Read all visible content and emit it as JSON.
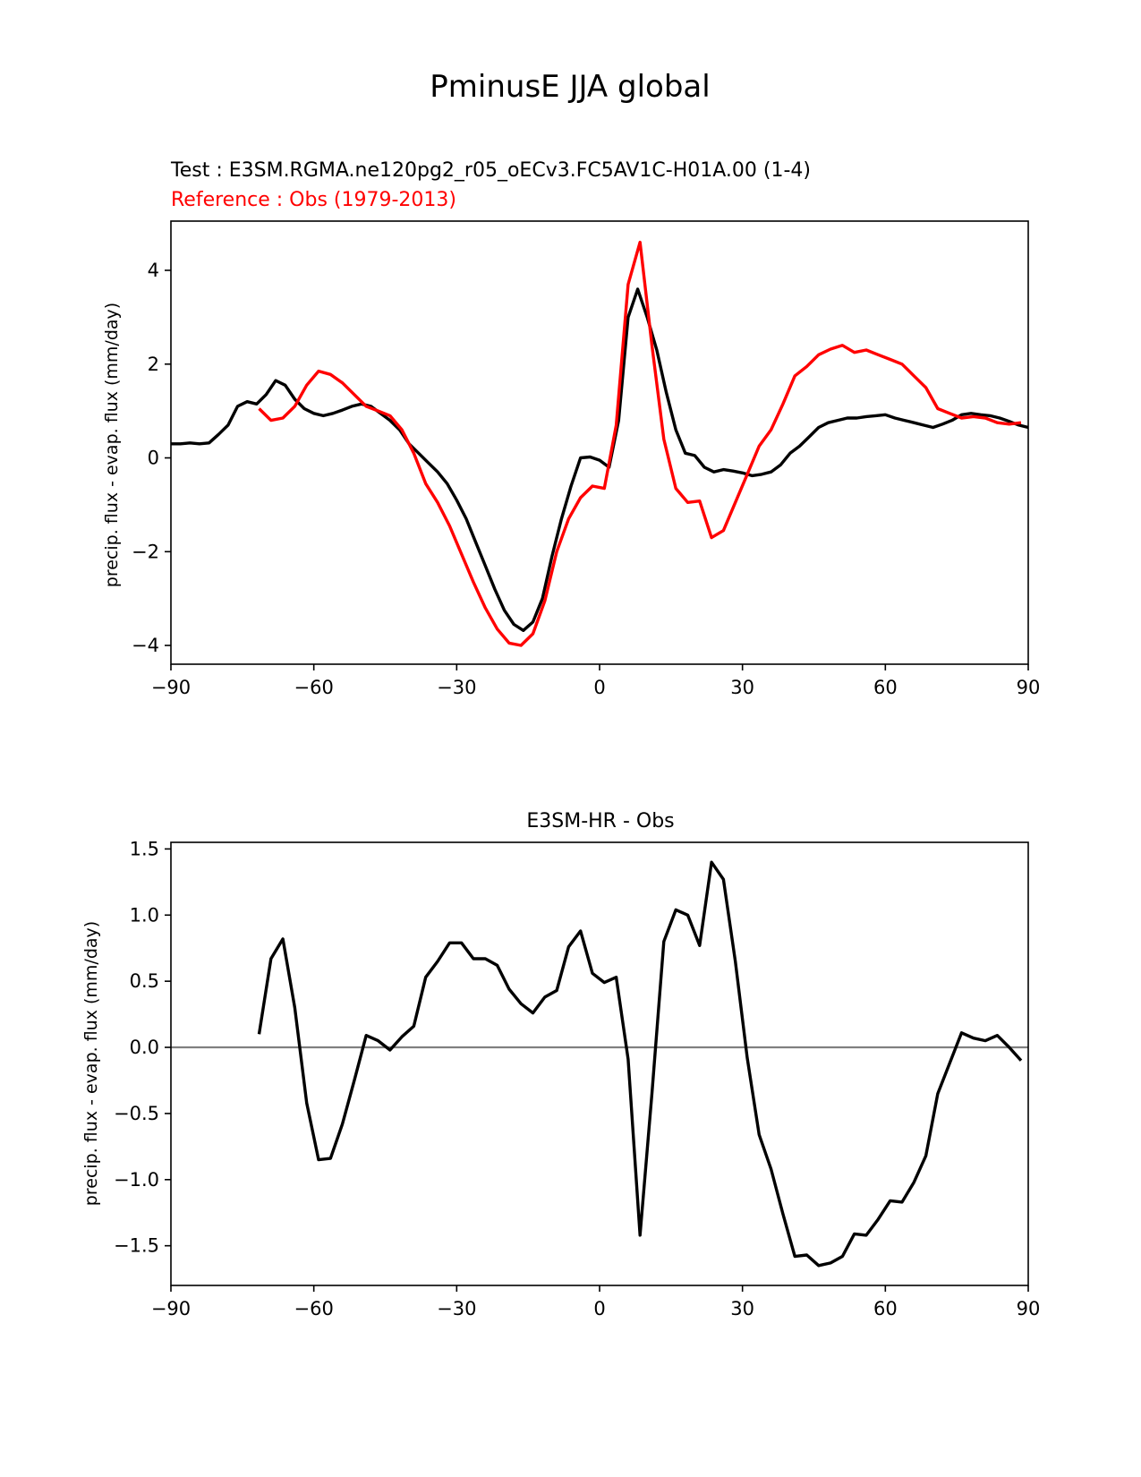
{
  "figure": {
    "title": "PminusE JJA global",
    "colors": {
      "test": "#000000",
      "reference": "#ff0000",
      "zero_line": "#808080",
      "axes": "#000000"
    }
  },
  "chart_data": [
    {
      "type": "line",
      "title_test": "Test : E3SM.RGMA.ne120pg2_r05_oECv3.FC5AV1C-H01A.00 (1-4)",
      "title_reference": "Reference : Obs (1979-2013)",
      "xlabel": "",
      "ylabel": "precip. flux - evap. flux (mm/day)",
      "xlim": [
        -90,
        90
      ],
      "ylim": [
        -4.4,
        5.05
      ],
      "xticks": [
        -90,
        -60,
        -30,
        0,
        30,
        60,
        90
      ],
      "xtick_labels": [
        "−90",
        "−60",
        "−30",
        "0",
        "30",
        "60",
        "90"
      ],
      "yticks": [
        -4,
        -2,
        0,
        2,
        4
      ],
      "ytick_labels": [
        "−4",
        "−2",
        "0",
        "2",
        "4"
      ],
      "series": [
        {
          "name": "Test",
          "color": "#000000",
          "x": [
            -90,
            -88,
            -86,
            -84,
            -82,
            -80,
            -78,
            -76,
            -74,
            -72,
            -70,
            -68,
            -66,
            -64,
            -62,
            -60,
            -58,
            -56,
            -54,
            -52,
            -50,
            -48,
            -46,
            -44,
            -42,
            -40,
            -38,
            -36,
            -34,
            -32,
            -30,
            -28,
            -26,
            -24,
            -22,
            -20,
            -18,
            -16,
            -14,
            -12,
            -10,
            -8,
            -6,
            -4,
            -2,
            0,
            2,
            4,
            6,
            8,
            10,
            12,
            14,
            16,
            18,
            20,
            22,
            24,
            26,
            28,
            30,
            32,
            34,
            36,
            38,
            40,
            42,
            44,
            46,
            48,
            50,
            52,
            54,
            56,
            58,
            60,
            62,
            64,
            66,
            68,
            70,
            72,
            74,
            76,
            78,
            80,
            82,
            84,
            86,
            88,
            90
          ],
          "y": [
            0.3,
            0.3,
            0.32,
            0.3,
            0.32,
            0.5,
            0.7,
            1.1,
            1.2,
            1.15,
            1.35,
            1.65,
            1.55,
            1.25,
            1.05,
            0.95,
            0.9,
            0.95,
            1.02,
            1.1,
            1.15,
            1.1,
            0.95,
            0.8,
            0.6,
            0.3,
            0.1,
            -0.1,
            -0.3,
            -0.55,
            -0.9,
            -1.3,
            -1.8,
            -2.3,
            -2.8,
            -3.25,
            -3.55,
            -3.68,
            -3.5,
            -3.0,
            -2.1,
            -1.3,
            -0.6,
            0.0,
            0.02,
            -0.05,
            -0.2,
            0.8,
            3.0,
            3.6,
            3.0,
            2.3,
            1.4,
            0.6,
            0.1,
            0.05,
            -0.2,
            -0.3,
            -0.25,
            -0.28,
            -0.32,
            -0.38,
            -0.35,
            -0.3,
            -0.15,
            0.1,
            0.25,
            0.45,
            0.65,
            0.75,
            0.8,
            0.85,
            0.85,
            0.88,
            0.9,
            0.92,
            0.85,
            0.8,
            0.75,
            0.7,
            0.65,
            0.72,
            0.8,
            0.92,
            0.95,
            0.92,
            0.9,
            0.85,
            0.78,
            0.7,
            0.65
          ]
        },
        {
          "name": "Reference",
          "color": "#ff0000",
          "x": [
            -71.5,
            -69,
            -66.5,
            -64,
            -61.5,
            -59,
            -56.5,
            -54,
            -51.5,
            -49,
            -46.5,
            -44,
            -41.5,
            -39,
            -36.5,
            -34,
            -31.5,
            -29,
            -26.5,
            -24,
            -21.5,
            -19,
            -16.5,
            -14,
            -11.5,
            -9,
            -6.5,
            -4,
            -1.5,
            1,
            3.5,
            6,
            8.5,
            11,
            13.5,
            16,
            18.5,
            21,
            23.5,
            26,
            28.5,
            31,
            33.5,
            36,
            38.5,
            41,
            43.5,
            46,
            48.5,
            51,
            53.5,
            56,
            58.5,
            61,
            63.5,
            66,
            68.5,
            71,
            73.5,
            76,
            78.5,
            81,
            83.5,
            86,
            88.5
          ],
          "y": [
            1.05,
            0.8,
            0.85,
            1.1,
            1.55,
            1.85,
            1.78,
            1.6,
            1.35,
            1.1,
            1.0,
            0.9,
            0.6,
            0.1,
            -0.55,
            -0.95,
            -1.45,
            -2.05,
            -2.65,
            -3.2,
            -3.65,
            -3.95,
            -4.0,
            -3.75,
            -3.05,
            -2.0,
            -1.3,
            -0.85,
            -0.6,
            -0.65,
            0.7,
            3.7,
            4.6,
            2.4,
            0.4,
            -0.65,
            -0.95,
            -0.92,
            -1.7,
            -1.55,
            -0.95,
            -0.35,
            0.25,
            0.6,
            1.15,
            1.75,
            1.95,
            2.2,
            2.32,
            2.4,
            2.25,
            2.3,
            2.2,
            2.1,
            2.0,
            1.75,
            1.5,
            1.05,
            0.95,
            0.85,
            0.88,
            0.85,
            0.75,
            0.72,
            0.75
          ]
        }
      ]
    },
    {
      "type": "line",
      "title": "E3SM-HR - Obs",
      "xlabel": "",
      "ylabel": "precip. flux - evap. flux (mm/day)",
      "xlim": [
        -90,
        90
      ],
      "ylim": [
        -1.8,
        1.55
      ],
      "xticks": [
        -90,
        -60,
        -30,
        0,
        30,
        60,
        90
      ],
      "xtick_labels": [
        "−90",
        "−60",
        "−30",
        "0",
        "30",
        "60",
        "90"
      ],
      "yticks": [
        -1.5,
        -1.0,
        -0.5,
        0.0,
        0.5,
        1.0,
        1.5
      ],
      "ytick_labels": [
        "−1.5",
        "−1.0",
        "−0.5",
        "0.0",
        "0.5",
        "1.0",
        "1.5"
      ],
      "hline": 0,
      "series": [
        {
          "name": "E3SM-HR - Obs",
          "color": "#000000",
          "x": [
            -71.5,
            -69,
            -66.5,
            -64,
            -61.5,
            -59,
            -56.5,
            -54,
            -51.5,
            -49,
            -46.5,
            -44,
            -41.5,
            -39,
            -36.5,
            -34,
            -31.5,
            -29,
            -26.5,
            -24,
            -21.5,
            -19,
            -16.5,
            -14,
            -11.5,
            -9,
            -6.5,
            -4,
            -1.5,
            1,
            3.5,
            6,
            8.5,
            11,
            13.5,
            16,
            18.5,
            21,
            23.5,
            26,
            28.5,
            31,
            33.5,
            36,
            38.5,
            41,
            43.5,
            46,
            48.5,
            51,
            53.5,
            56,
            58.5,
            61,
            63.5,
            66,
            68.5,
            71,
            73.5,
            76,
            78.5,
            81,
            83.5,
            86,
            88.5
          ],
          "y": [
            0.1,
            0.67,
            0.82,
            0.3,
            -0.42,
            -0.85,
            -0.84,
            -0.58,
            -0.25,
            0.09,
            0.05,
            -0.02,
            0.08,
            0.16,
            0.53,
            0.65,
            0.79,
            0.79,
            0.67,
            0.67,
            0.62,
            0.44,
            0.33,
            0.26,
            0.38,
            0.43,
            0.76,
            0.88,
            0.56,
            0.49,
            0.53,
            -0.09,
            -1.42,
            -0.35,
            0.8,
            1.04,
            1.0,
            0.77,
            1.4,
            1.27,
            0.65,
            -0.08,
            -0.66,
            -0.92,
            -1.26,
            -1.58,
            -1.57,
            -1.65,
            -1.63,
            -1.58,
            -1.41,
            -1.42,
            -1.3,
            -1.16,
            -1.17,
            -1.02,
            -0.82,
            -0.35,
            -0.12,
            0.11,
            0.07,
            0.05,
            0.09,
            0.0,
            -0.1
          ]
        }
      ]
    }
  ]
}
